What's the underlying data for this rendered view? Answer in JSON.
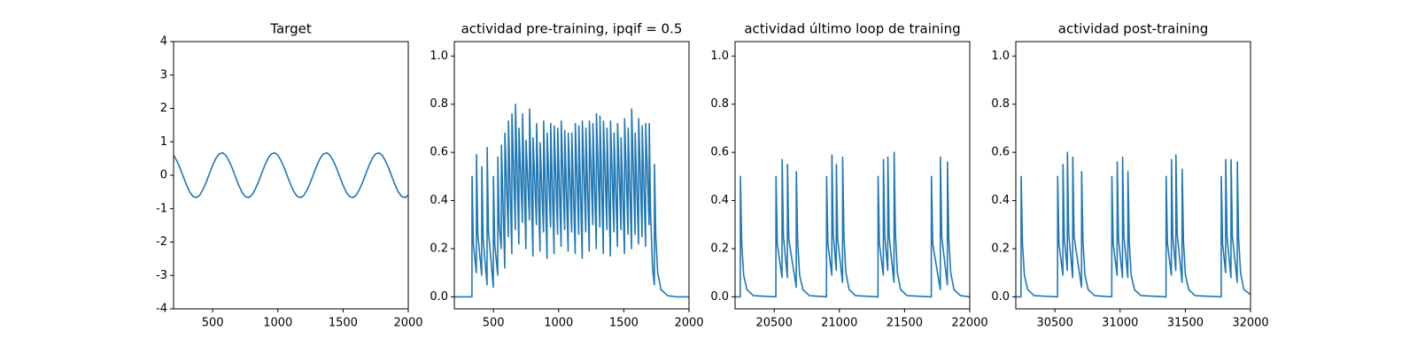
{
  "chart_data": [
    {
      "type": "line",
      "title": "Target",
      "color": "#1f77b4",
      "xlim": [
        200,
        2000
      ],
      "ylim": [
        -4,
        4
      ],
      "xticks": [
        500,
        1000,
        1500,
        2000
      ],
      "yticks": [
        -4,
        -3,
        -2,
        -1,
        0,
        1,
        2,
        3,
        4
      ],
      "x": [
        200,
        225,
        250,
        275,
        300,
        325,
        350,
        375,
        400,
        425,
        450,
        475,
        500,
        525,
        550,
        575,
        600,
        625,
        650,
        675,
        700,
        725,
        750,
        775,
        800,
        825,
        850,
        875,
        900,
        925,
        950,
        975,
        1000,
        1025,
        1050,
        1075,
        1100,
        1125,
        1150,
        1175,
        1200,
        1225,
        1250,
        1275,
        1300,
        1325,
        1350,
        1375,
        1400,
        1425,
        1450,
        1475,
        1500,
        1525,
        1550,
        1575,
        1600,
        1625,
        1650,
        1675,
        1700,
        1725,
        1750,
        1775,
        1800,
        1825,
        1850,
        1875,
        1900,
        1925,
        1950,
        1975,
        2000
      ],
      "values": [
        0.6,
        0.43,
        0.21,
        -0.05,
        -0.3,
        -0.51,
        -0.64,
        -0.67,
        -0.6,
        -0.43,
        -0.21,
        0.05,
        0.3,
        0.51,
        0.64,
        0.67,
        0.6,
        0.43,
        0.21,
        -0.05,
        -0.3,
        -0.51,
        -0.64,
        -0.67,
        -0.6,
        -0.43,
        -0.21,
        0.05,
        0.3,
        0.51,
        0.64,
        0.67,
        0.6,
        0.43,
        0.21,
        -0.05,
        -0.3,
        -0.51,
        -0.64,
        -0.67,
        -0.6,
        -0.43,
        -0.21,
        0.05,
        0.3,
        0.51,
        0.64,
        0.67,
        0.6,
        0.43,
        0.21,
        -0.05,
        -0.3,
        -0.51,
        -0.64,
        -0.67,
        -0.6,
        -0.43,
        -0.21,
        0.05,
        0.3,
        0.51,
        0.64,
        0.67,
        0.6,
        0.43,
        0.21,
        -0.05,
        -0.3,
        -0.51,
        -0.64,
        -0.67,
        -0.6
      ]
    },
    {
      "type": "line",
      "title": "actividad pre-training, ipqif = 0.5",
      "color": "#1f77b4",
      "xlim": [
        200,
        2000
      ],
      "ylim": [
        -0.05,
        1.06
      ],
      "xticks": [
        500,
        1000,
        1500,
        2000
      ],
      "yticks": [
        {
          "value": 0,
          "label": "0.0"
        },
        0.2,
        0.4,
        0.6,
        0.8,
        {
          "value": 1,
          "label": "1.0"
        }
      ],
      "x": [
        200,
        335,
        336,
        346,
        369,
        370,
        380,
        410,
        411,
        421,
        451,
        452,
        462,
        499,
        500,
        510,
        533,
        534,
        544,
        560,
        561,
        587,
        588,
        614,
        615,
        641,
        642,
        668,
        669,
        695,
        696,
        722,
        723,
        749,
        750,
        776,
        777,
        803,
        804,
        830,
        831,
        857,
        858,
        884,
        885,
        911,
        912,
        938,
        939,
        965,
        966,
        992,
        993,
        1019,
        1020,
        1046,
        1047,
        1073,
        1074,
        1100,
        1101,
        1127,
        1128,
        1154,
        1155,
        1181,
        1182,
        1208,
        1209,
        1235,
        1236,
        1262,
        1263,
        1289,
        1290,
        1316,
        1317,
        1343,
        1344,
        1370,
        1371,
        1397,
        1398,
        1424,
        1425,
        1451,
        1452,
        1478,
        1479,
        1505,
        1506,
        1532,
        1533,
        1559,
        1560,
        1586,
        1587,
        1613,
        1614,
        1640,
        1641,
        1667,
        1668,
        1694,
        1695,
        1705,
        1720,
        1734,
        1735,
        1745,
        1760,
        1785,
        1835,
        1900,
        2000
      ],
      "values": [
        0,
        0,
        0.5,
        0.22,
        0.1,
        0.59,
        0.26,
        0.09,
        0.54,
        0.24,
        0.05,
        0.62,
        0.27,
        0.04,
        0.5,
        0.22,
        0.09,
        0.58,
        0.3,
        0.2,
        0.63,
        0.12,
        0.68,
        0.25,
        0.73,
        0.18,
        0.76,
        0.28,
        0.8,
        0.22,
        0.7,
        0.31,
        0.76,
        0.2,
        0.65,
        0.32,
        0.78,
        0.17,
        0.66,
        0.3,
        0.72,
        0.19,
        0.64,
        0.27,
        0.73,
        0.16,
        0.68,
        0.29,
        0.72,
        0.18,
        0.71,
        0.26,
        0.7,
        0.21,
        0.73,
        0.28,
        0.69,
        0.19,
        0.68,
        0.27,
        0.68,
        0.18,
        0.72,
        0.26,
        0.71,
        0.16,
        0.73,
        0.27,
        0.7,
        0.19,
        0.73,
        0.3,
        0.72,
        0.2,
        0.76,
        0.29,
        0.75,
        0.18,
        0.73,
        0.28,
        0.7,
        0.17,
        0.73,
        0.27,
        0.68,
        0.21,
        0.72,
        0.28,
        0.66,
        0.18,
        0.74,
        0.26,
        0.7,
        0.2,
        0.78,
        0.26,
        0.68,
        0.22,
        0.74,
        0.25,
        0.71,
        0.21,
        0.72,
        0.3,
        0.72,
        0.35,
        0.12,
        0.05,
        0.55,
        0.25,
        0.1,
        0.03,
        0.005,
        0,
        0
      ]
    },
    {
      "type": "line",
      "title": "actividad último loop de training",
      "color": "#1f77b4",
      "xlim": [
        20200,
        22000
      ],
      "ylim": [
        -0.05,
        1.06
      ],
      "xticks": [
        20500,
        21000,
        21500,
        22000
      ],
      "yticks": [
        {
          "value": 0,
          "label": "0.0"
        },
        0.2,
        0.4,
        0.6,
        0.8,
        {
          "value": 1,
          "label": "1.0"
        }
      ],
      "x": [
        20200,
        20240,
        20241,
        20251,
        20266,
        20291,
        20340,
        20513,
        20514,
        20524,
        20560,
        20561,
        20571,
        20601,
        20602,
        20612,
        20669,
        20670,
        20680,
        20695,
        20720,
        20770,
        20901,
        20902,
        20912,
        20942,
        20943,
        20953,
        20976,
        20977,
        20987,
        21024,
        21025,
        21035,
        21050,
        21075,
        21125,
        21296,
        21297,
        21307,
        21337,
        21338,
        21348,
        21371,
        21372,
        21382,
        21419,
        21420,
        21430,
        21445,
        21470,
        21520,
        21705,
        21706,
        21716,
        21774,
        21775,
        21785,
        21828,
        21829,
        21839,
        21854,
        21879,
        21929,
        22000
      ],
      "values": [
        0,
        0,
        0.5,
        0.22,
        0.09,
        0.03,
        0.005,
        0,
        0.5,
        0.22,
        0.08,
        0.57,
        0.25,
        0.08,
        0.55,
        0.24,
        0.04,
        0.52,
        0.23,
        0.09,
        0.03,
        0.005,
        0,
        0.5,
        0.22,
        0.09,
        0.59,
        0.26,
        0.11,
        0.55,
        0.24,
        0.06,
        0.58,
        0.25,
        0.1,
        0.03,
        0.005,
        0,
        0.5,
        0.22,
        0.09,
        0.57,
        0.25,
        0.11,
        0.58,
        0.25,
        0.06,
        0.6,
        0.26,
        0.1,
        0.03,
        0.005,
        0,
        0.5,
        0.22,
        0.03,
        0.58,
        0.25,
        0.05,
        0.56,
        0.24,
        0.1,
        0.03,
        0.005,
        0
      ]
    },
    {
      "type": "line",
      "title": "actividad post-training",
      "color": "#1f77b4",
      "xlim": [
        30200,
        32000
      ],
      "ylim": [
        -0.05,
        1.06
      ],
      "xticks": [
        30500,
        31000,
        31500,
        32000
      ],
      "yticks": [
        {
          "value": 0,
          "label": "0.0"
        },
        0.2,
        0.4,
        0.6,
        0.8,
        {
          "value": 1,
          "label": "1.0"
        }
      ],
      "x": [
        30200,
        30240,
        30241,
        30251,
        30266,
        30291,
        30340,
        30520,
        30521,
        30531,
        30561,
        30562,
        30572,
        30595,
        30596,
        30606,
        30636,
        30637,
        30647,
        30704,
        30705,
        30715,
        30730,
        30755,
        30805,
        30936,
        30937,
        30947,
        30977,
        30978,
        30988,
        31018,
        31019,
        31029,
        31059,
        31060,
        31070,
        31085,
        31110,
        31160,
        31352,
        31353,
        31363,
        31393,
        31394,
        31404,
        31427,
        31428,
        31438,
        31475,
        31476,
        31486,
        31501,
        31526,
        31576,
        31775,
        31776,
        31786,
        31809,
        31810,
        31820,
        31850,
        31851,
        31861,
        31898,
        31899,
        31909,
        31924,
        31949,
        32000
      ],
      "values": [
        0,
        0,
        0.5,
        0.22,
        0.09,
        0.03,
        0.005,
        0,
        0.5,
        0.22,
        0.09,
        0.55,
        0.24,
        0.11,
        0.6,
        0.26,
        0.08,
        0.58,
        0.25,
        0.04,
        0.52,
        0.23,
        0.09,
        0.03,
        0.005,
        0,
        0.5,
        0.22,
        0.09,
        0.56,
        0.24,
        0.08,
        0.58,
        0.25,
        0.08,
        0.52,
        0.23,
        0.09,
        0.03,
        0.005,
        0,
        0.5,
        0.22,
        0.09,
        0.57,
        0.25,
        0.11,
        0.59,
        0.26,
        0.06,
        0.53,
        0.23,
        0.09,
        0.03,
        0.005,
        0,
        0.5,
        0.22,
        0.1,
        0.57,
        0.25,
        0.08,
        0.57,
        0.25,
        0.06,
        0.56,
        0.24,
        0.1,
        0.03,
        0.01
      ]
    }
  ]
}
